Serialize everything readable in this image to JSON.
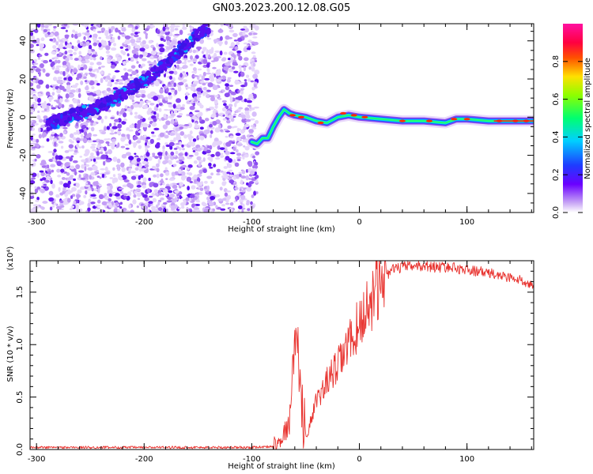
{
  "figure_title": "GN03.2023.200.12.08.G05",
  "colors": {
    "snr_line": "#e8322e",
    "main_track": "#5a0ff0",
    "axis": "#000000"
  },
  "chart_data": [
    {
      "type": "heatmap",
      "title": "GN03.2023.200.12.08.G05",
      "xlabel": "Height of straight line (km)",
      "ylabel": "Frequency (Hz)",
      "xlim": [
        -306,
        162
      ],
      "ylim": [
        -50,
        49
      ],
      "x_ticks": [
        -300,
        -200,
        -100,
        0,
        100
      ],
      "x_tick_labels": [
        "-300",
        "-200",
        "-100",
        "0",
        "100"
      ],
      "y_ticks": [
        -40,
        -20,
        0,
        20,
        40
      ],
      "y_tick_labels": [
        "-40",
        "-20",
        "0",
        "20",
        "40"
      ],
      "colorbar": {
        "label": "Normalized spectral amplitude",
        "range": [
          0,
          1
        ],
        "ticks": [
          0.0,
          0.2,
          0.4,
          0.6,
          0.8
        ],
        "tick_labels": [
          "0.0",
          "0.2",
          "0.4",
          "0.6",
          "0.8"
        ],
        "colormap": "rainbow (white-violet-blue-cyan-green-yellow-red-magenta)"
      },
      "noise_region_x_max": -95,
      "main_track": [
        [
          -290,
          -4
        ],
        [
          -280,
          -2
        ],
        [
          -270,
          0
        ],
        [
          -260,
          2
        ],
        [
          -250,
          4
        ],
        [
          -240,
          6
        ],
        [
          -230,
          9
        ],
        [
          -220,
          12
        ],
        [
          -210,
          16
        ],
        [
          -200,
          19
        ],
        [
          -190,
          23
        ],
        [
          -180,
          28
        ],
        [
          -170,
          33
        ],
        [
          -160,
          38
        ],
        [
          -150,
          43
        ],
        [
          -140,
          47
        ]
      ],
      "carrier_track": [
        [
          -100,
          -13
        ],
        [
          -95,
          -14
        ],
        [
          -90,
          -11
        ],
        [
          -85,
          -11
        ],
        [
          -80,
          -5
        ],
        [
          -75,
          0
        ],
        [
          -70,
          4
        ],
        [
          -65,
          2
        ],
        [
          -60,
          1
        ],
        [
          -50,
          0
        ],
        [
          -40,
          -2
        ],
        [
          -30,
          -3
        ],
        [
          -20,
          0
        ],
        [
          -10,
          1
        ],
        [
          0,
          0
        ],
        [
          20,
          -1
        ],
        [
          40,
          -2
        ],
        [
          60,
          -2
        ],
        [
          80,
          -3
        ],
        [
          90,
          -1
        ],
        [
          100,
          -1
        ],
        [
          120,
          -2
        ],
        [
          140,
          -2
        ],
        [
          162,
          -2
        ]
      ]
    },
    {
      "type": "line",
      "xlabel": "Height of straight line (km)",
      "ylabel": "SNR (10 * v/v)",
      "y_multiplier_label": "(x10⁴)",
      "xlim": [
        -306,
        162
      ],
      "ylim": [
        0,
        1.8
      ],
      "x_ticks": [
        -300,
        -200,
        -100,
        0,
        100
      ],
      "x_tick_labels": [
        "-300",
        "-200",
        "-100",
        "0",
        "100"
      ],
      "y_ticks": [
        0.0,
        0.5,
        1.0,
        1.5
      ],
      "y_tick_labels": [
        "0.0",
        "0.5",
        "1.0",
        "1.5"
      ],
      "series": [
        {
          "color": "#e8322e",
          "x": [
            -306,
            -250,
            -200,
            -150,
            -100,
            -80,
            -75,
            -70,
            -65,
            -62,
            -58,
            -55,
            -52,
            -50,
            -45,
            -40,
            -35,
            -30,
            -25,
            -20,
            -15,
            -10,
            -5,
            0,
            5,
            10,
            15,
            20,
            25,
            30,
            40,
            50,
            60,
            70,
            80,
            90,
            100,
            110,
            120,
            130,
            140,
            150,
            162
          ],
          "y": [
            0.02,
            0.02,
            0.02,
            0.02,
            0.02,
            0.03,
            0.08,
            0.15,
            0.25,
            0.7,
            1.2,
            0.6,
            0.05,
            0.1,
            0.3,
            0.45,
            0.55,
            0.65,
            0.72,
            0.8,
            0.9,
            1.0,
            1.1,
            1.2,
            1.3,
            1.42,
            1.52,
            1.6,
            1.66,
            1.71,
            1.74,
            1.75,
            1.75,
            1.74,
            1.74,
            1.73,
            1.71,
            1.7,
            1.68,
            1.66,
            1.64,
            1.61,
            1.58
          ]
        }
      ]
    }
  ]
}
